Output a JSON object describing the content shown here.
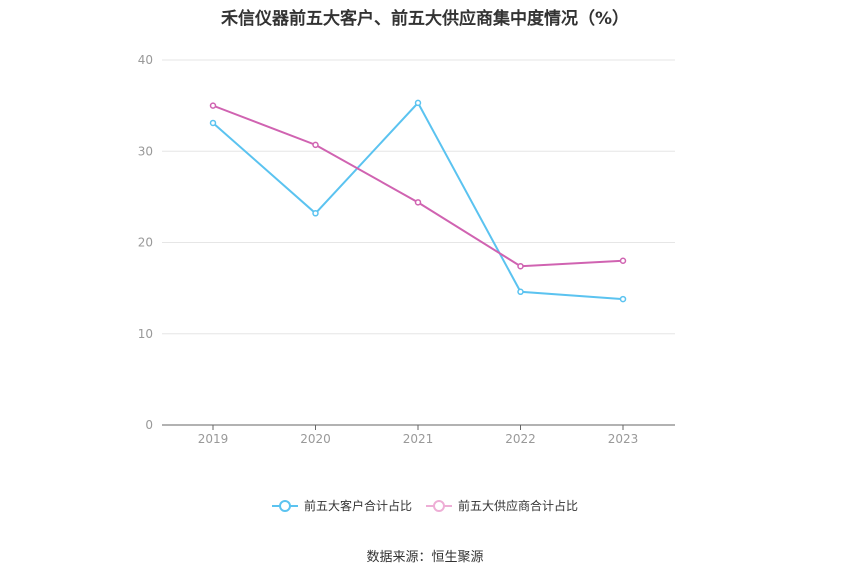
{
  "chart_data": {
    "type": "line",
    "title": "禾信仪器前五大客户、前五大供应商集中度情况（%）",
    "categories": [
      "2019",
      "2020",
      "2021",
      "2022",
      "2023"
    ],
    "series": [
      {
        "name": "前五大客户合计占比",
        "values": [
          33.1,
          23.2,
          35.3,
          14.6,
          13.8
        ],
        "color": "#5bc3f0"
      },
      {
        "name": "前五大供应商合计占比",
        "values": [
          35.0,
          30.7,
          24.4,
          17.4,
          18.0
        ],
        "color": "#d063b1"
      }
    ],
    "ylim": [
      0,
      40
    ],
    "yticks": [
      0,
      10,
      20,
      30,
      40
    ],
    "grid": true,
    "legend_position": "bottom",
    "xlabel": "",
    "ylabel": ""
  },
  "source": "数据来源：恒生聚源"
}
